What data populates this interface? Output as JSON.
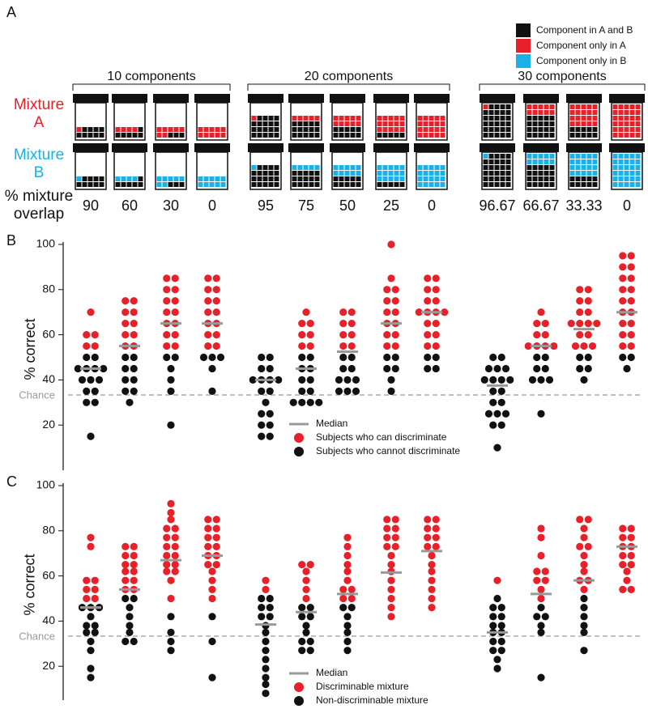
{
  "panel_a": {
    "label": "A",
    "legend": [
      {
        "name": "Component in A and B",
        "color": "#111111"
      },
      {
        "name": "Component only in A",
        "color": "#e8202a"
      },
      {
        "name": "Component only in B",
        "color": "#1ab0e8"
      }
    ],
    "mixture_a": {
      "text": [
        "Mixture",
        "A"
      ],
      "color": "#e8202a"
    },
    "mixture_b": {
      "text": [
        "Mixture",
        "B"
      ],
      "color": "#1ab0e8"
    },
    "overlap_label": [
      "% mixture",
      "overlap"
    ],
    "groups": [
      {
        "label": "10 components",
        "overlaps": [
          90,
          60,
          30,
          0
        ]
      },
      {
        "label": "20 components",
        "overlaps": [
          95,
          75,
          50,
          25,
          0
        ]
      },
      {
        "label": "30 components",
        "overlaps": [
          96.67,
          66.67,
          33.33,
          0
        ]
      }
    ]
  },
  "chart_data": [
    {
      "type": "strip",
      "panel_label": "B",
      "ylabel": "% correct",
      "ylim": [
        0,
        100
      ],
      "yticks": [
        20,
        40,
        60,
        80,
        100
      ],
      "chance": {
        "value": 33.33,
        "label": "Chance"
      },
      "median_label": "Median",
      "median_color": "#999999",
      "medians": [
        45,
        55,
        65,
        65,
        40,
        45,
        52.5,
        65,
        70,
        37.5,
        55,
        62.5,
        70
      ],
      "series": [
        {
          "name": "Subjects who can discriminate",
          "color": "#e8202a",
          "values": [
            [
              70,
              60,
              60,
              55,
              55
            ],
            [
              75,
              75,
              70,
              70,
              65,
              65,
              60,
              60,
              55,
              55
            ],
            [
              85,
              85,
              80,
              80,
              75,
              75,
              70,
              70,
              65,
              65,
              60,
              60,
              55,
              55
            ],
            [
              85,
              85,
              80,
              80,
              75,
              75,
              70,
              70,
              65,
              65,
              60,
              60,
              55,
              55
            ],
            [],
            [
              70,
              65,
              65,
              60,
              60,
              55,
              55
            ],
            [
              70,
              70,
              65,
              65,
              60,
              60,
              55,
              55
            ],
            [
              100,
              85,
              80,
              80,
              75,
              75,
              70,
              70,
              65,
              65,
              60,
              60,
              55,
              55
            ],
            [
              85,
              85,
              80,
              80,
              75,
              75,
              70,
              70,
              70,
              70,
              65,
              65,
              60,
              60,
              55,
              55
            ],
            [],
            [
              70,
              65,
              65,
              60,
              60,
              55,
              55,
              55,
              55
            ],
            [
              80,
              80,
              75,
              75,
              70,
              70,
              65,
              65,
              65,
              65,
              60,
              60,
              55,
              55,
              55
            ],
            [
              95,
              95,
              90,
              90,
              85,
              85,
              80,
              80,
              75,
              75,
              70,
              70,
              65,
              65,
              60,
              60,
              55,
              55
            ]
          ]
        },
        {
          "name": "Subjects who cannot discriminate",
          "color": "#111111",
          "values": [
            [
              50,
              50,
              45,
              45,
              45,
              45,
              40,
              40,
              40,
              35,
              35,
              30,
              30,
              15
            ],
            [
              50,
              50,
              45,
              45,
              40,
              40,
              35,
              35,
              30
            ],
            [
              50,
              50,
              45,
              40,
              35,
              20
            ],
            [
              50,
              50,
              50,
              45,
              35
            ],
            [
              50,
              50,
              45,
              45,
              40,
              40,
              40,
              40,
              35,
              35,
              30,
              25,
              25,
              20,
              20,
              15,
              15
            ],
            [
              50,
              50,
              45,
              45,
              40,
              40,
              35,
              35,
              30,
              30,
              30,
              30
            ],
            [
              50,
              50,
              45,
              45,
              40,
              40,
              40,
              35,
              35,
              35
            ],
            [
              50,
              50,
              45,
              45,
              40,
              35
            ],
            [
              50,
              50,
              45,
              45
            ],
            [
              50,
              50,
              45,
              45,
              45,
              40,
              40,
              40,
              40,
              35,
              35,
              30,
              30,
              25,
              25,
              25,
              20,
              20,
              10
            ],
            [
              50,
              50,
              45,
              45,
              40,
              40,
              40,
              25
            ],
            [
              50,
              50,
              45,
              45,
              40
            ],
            [
              50,
              50,
              45
            ]
          ]
        }
      ]
    },
    {
      "type": "strip",
      "panel_label": "C",
      "ylabel": "% correct",
      "ylim": [
        5,
        100
      ],
      "yticks": [
        20,
        40,
        60,
        80,
        100
      ],
      "chance": {
        "value": 33.33,
        "label": "Chance"
      },
      "median_label": "Median",
      "median_color": "#999999",
      "medians": [
        46,
        54,
        67,
        69,
        38.5,
        44,
        52,
        61.5,
        71,
        35,
        52,
        58,
        73
      ],
      "series": [
        {
          "name": "Discriminable mixture",
          "color": "#e8202a",
          "values": [
            [
              77,
              73,
              58,
              58,
              54,
              54,
              50,
              50
            ],
            [
              73,
              73,
              69,
              69,
              65,
              65,
              62,
              62,
              58,
              58,
              54,
              54
            ],
            [
              92,
              88,
              85,
              81,
              81,
              77,
              77,
              73,
              73,
              69,
              69,
              65,
              65,
              62,
              62,
              58,
              50
            ],
            [
              85,
              85,
              81,
              81,
              77,
              77,
              73,
              73,
              69,
              69,
              65,
              65,
              62,
              58,
              54,
              50
            ],
            [
              58,
              54
            ],
            [
              65,
              65,
              62,
              58,
              54,
              50
            ],
            [
              77,
              73,
              69,
              65,
              62,
              58,
              54,
              54,
              50,
              50
            ],
            [
              85,
              85,
              81,
              81,
              77,
              77,
              73,
              73,
              69,
              65,
              62,
              58,
              54,
              50,
              46,
              42
            ],
            [
              85,
              85,
              81,
              81,
              77,
              77,
              73,
              73,
              69,
              65,
              62,
              58,
              54,
              50,
              46
            ],
            [
              58
            ],
            [
              81,
              77,
              69,
              62,
              62,
              58,
              58,
              54,
              50
            ],
            [
              85,
              85,
              81,
              77,
              73,
              73,
              69,
              65,
              62,
              58,
              58,
              54
            ],
            [
              81,
              81,
              77,
              77,
              73,
              73,
              69,
              69,
              65,
              65,
              62,
              58,
              54,
              54
            ]
          ]
        },
        {
          "name": "Non-discriminable mixture",
          "color": "#111111",
          "values": [
            [
              46,
              46,
              46,
              42,
              38,
              38,
              35,
              35,
              31,
              27,
              19,
              15
            ],
            [
              50,
              50,
              46,
              42,
              38,
              35,
              31,
              31
            ],
            [
              42,
              35,
              31,
              27
            ],
            [
              42,
              31,
              15
            ],
            [
              50,
              50,
              46,
              46,
              42,
              42,
              38,
              35,
              31,
              27,
              23,
              19,
              15,
              12,
              8
            ],
            [
              46,
              46,
              42,
              42,
              38,
              35,
              31,
              31,
              27,
              27
            ],
            [
              46,
              46,
              42,
              38,
              35,
              31,
              27
            ],
            [],
            [],
            [
              50,
              46,
              46,
              42,
              42,
              38,
              38,
              35,
              35,
              31,
              31,
              27,
              27,
              23,
              19
            ],
            [
              46,
              42,
              42,
              38,
              35,
              15
            ],
            [
              50,
              46,
              42,
              38,
              35,
              27
            ],
            []
          ]
        }
      ]
    }
  ]
}
